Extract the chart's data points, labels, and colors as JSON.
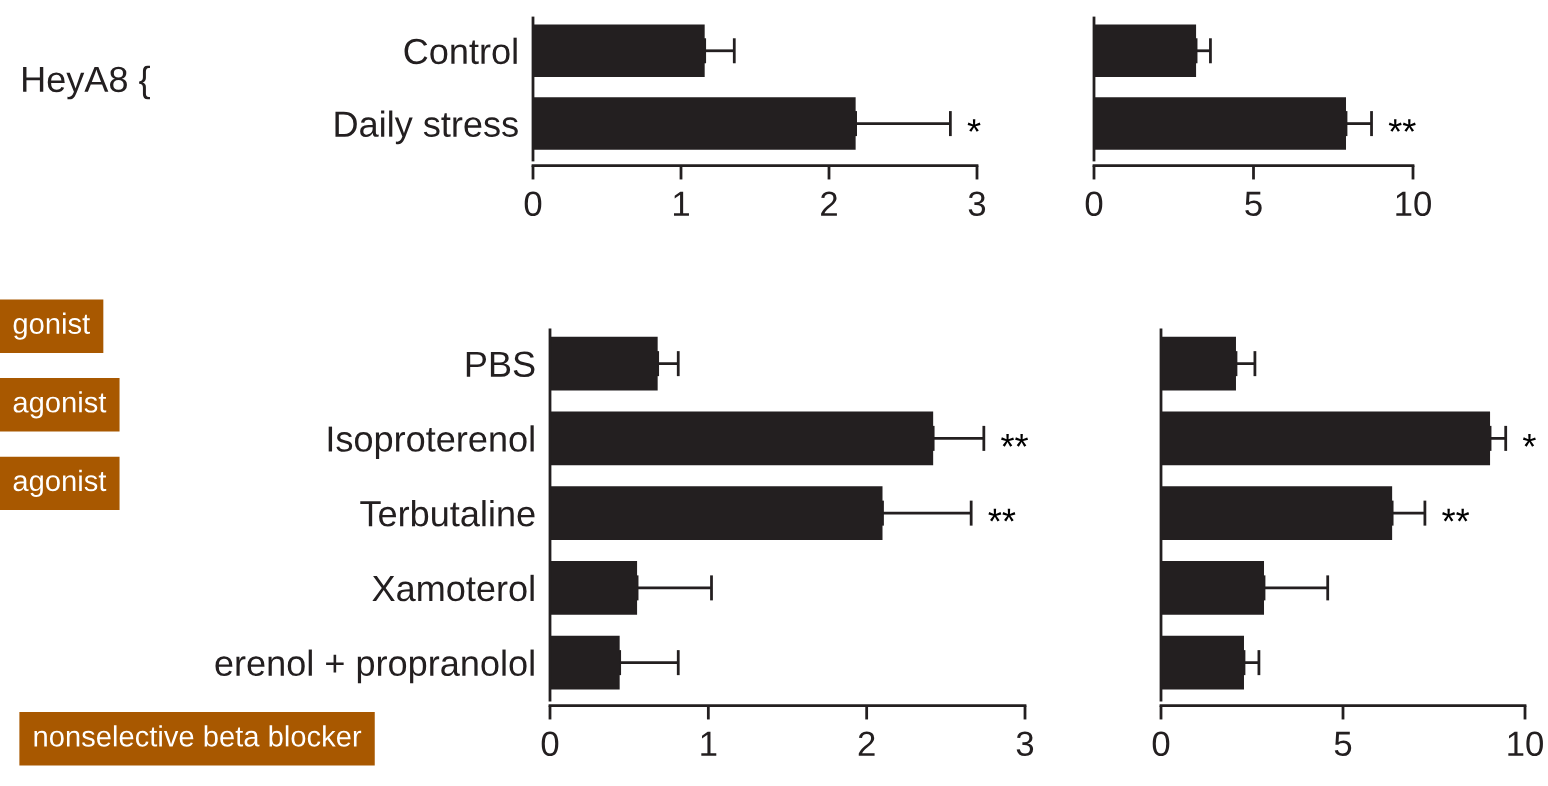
{
  "chart_data": [
    {
      "type": "bar",
      "orientation": "horizontal",
      "categories": [
        "Control",
        "Daily stress"
      ],
      "values": [
        1.16,
        2.18
      ],
      "errors": [
        [
          1.16,
          1.36
        ],
        [
          2.18,
          2.82
        ]
      ],
      "value_labels": [
        null,
        "*"
      ],
      "colors": [
        "#231f20",
        "#231f20"
      ],
      "xlim": [
        0,
        3
      ],
      "xticks": [
        0,
        1,
        2,
        3
      ],
      "grid": false,
      "legend": false,
      "annotations": [
        "HeyA8 {"
      ]
    },
    {
      "type": "bar",
      "orientation": "horizontal",
      "categories": [
        null,
        null
      ],
      "values": [
        3.2,
        7.9
      ],
      "errors": [
        [
          3.2,
          3.65
        ],
        [
          7.9,
          8.7
        ]
      ],
      "value_labels": [
        null,
        "**"
      ],
      "colors": [
        "#231f20",
        "#231f20"
      ],
      "xlim": [
        0,
        10
      ],
      "xticks": [
        0,
        5,
        10
      ],
      "grid": false,
      "legend": false
    },
    {
      "type": "bar",
      "orientation": "horizontal",
      "categories": [
        "PBS",
        "Isoproterenol",
        "Terbutaline",
        "Xamoterol",
        "erenol + propranolol"
      ],
      "values": [
        0.68,
        2.42,
        2.1,
        0.55,
        0.44
      ],
      "errors": [
        [
          0.68,
          0.81
        ],
        [
          2.42,
          2.74
        ],
        [
          2.1,
          2.66
        ],
        [
          0.55,
          1.02
        ],
        [
          0.44,
          0.81
        ]
      ],
      "value_labels": [
        null,
        "**",
        "**",
        null,
        null
      ],
      "colors": [
        "#231f20",
        "#231f20",
        "#231f20",
        "#231f20",
        "#231f20"
      ],
      "xlim": [
        0,
        3
      ],
      "xticks": [
        0,
        1,
        2,
        3
      ],
      "grid": false,
      "legend": false,
      "annotations": [
        "gonist",
        "agonist",
        "agonist",
        "nonselective beta blocker"
      ]
    },
    {
      "type": "bar",
      "orientation": "horizontal",
      "categories": [
        null,
        null,
        null,
        null,
        null
      ],
      "values": [
        2.06,
        9.04,
        6.35,
        2.83,
        2.28
      ],
      "errors": [
        [
          2.06,
          2.58
        ],
        [
          9.04,
          9.47
        ],
        [
          6.35,
          7.25
        ],
        [
          2.83,
          4.58
        ],
        [
          2.28,
          2.69
        ]
      ],
      "value_labels": [
        null,
        "*",
        "**",
        null,
        null
      ],
      "colors": [
        "#231f20",
        "#231f20",
        "#231f20",
        "#231f20",
        "#231f20"
      ],
      "xlim": [
        0,
        10
      ],
      "xticks": [
        0,
        5,
        10
      ],
      "grid": false,
      "legend": false
    }
  ]
}
